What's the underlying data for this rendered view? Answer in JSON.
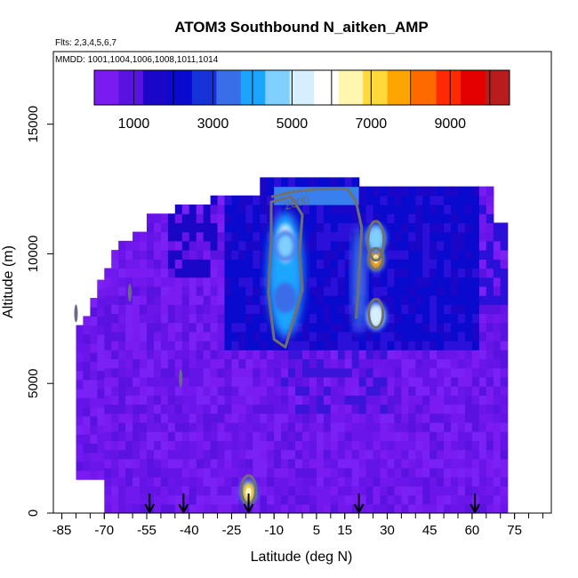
{
  "chart_data": {
    "type": "heatmap",
    "title": "ATOM3 Southbound N_aitken_AMP",
    "subtitle_flights": "Flts: 2,3,4,5,6,7",
    "subtitle_dates": "MMDD: 1001,1004,1006,1008,1011,1014",
    "xlabel": "Latitude (deg N)",
    "ylabel": "Altitude (m)",
    "xlim": [
      -88,
      88
    ],
    "ylim": [
      0,
      17800
    ],
    "x_ticks": [
      -85,
      -70,
      -55,
      -40,
      -25,
      -10,
      5,
      15,
      30,
      45,
      60,
      75
    ],
    "x_minor_ticks": [
      -85,
      -80,
      -75,
      -70,
      -65,
      -60,
      -55,
      -50,
      -45,
      -40,
      -35,
      -30,
      -25,
      -20,
      -15,
      -10,
      -5,
      0,
      5,
      10,
      15,
      20,
      25,
      30,
      35,
      40,
      45,
      50,
      55,
      60,
      65,
      70,
      75,
      80,
      85
    ],
    "y_ticks": [
      0,
      5000,
      10000,
      15000
    ],
    "colorbar": {
      "ticks": [
        1000,
        3000,
        5000,
        7000,
        9000
      ],
      "range": [
        0,
        10500
      ],
      "bin_width": 1000,
      "colors": [
        "#7a1bf2",
        "#5a12e0",
        "#1a06c6",
        "#0a0acf",
        "#1432d8",
        "#3a6de8",
        "#1aa6ff",
        "#7fcfff",
        "#d6efff",
        "#ffffff",
        "#fff6b0",
        "#ffd83a",
        "#ffa400",
        "#ff6a00",
        "#ff2a00",
        "#e50000",
        "#b81c1c"
      ]
    },
    "contour_label": "2000",
    "sample_latitudes": [
      -54,
      -42,
      -19,
      20,
      61
    ],
    "data_extent": {
      "lat": [
        -80,
        71
      ],
      "alt": [
        0,
        12900
      ]
    },
    "hotspots": [
      {
        "lat": -19,
        "alt": 800,
        "value": 7200
      },
      {
        "lat": 26,
        "alt": 9800,
        "value": 7800
      },
      {
        "lat": 26,
        "alt": 7600,
        "value": 5200
      },
      {
        "lat": 26,
        "alt": 10600,
        "value": 4400
      },
      {
        "lat": -6,
        "alt": 10300,
        "value": 4800
      },
      {
        "lat": -6,
        "alt": 8300,
        "value": 3400
      }
    ]
  }
}
